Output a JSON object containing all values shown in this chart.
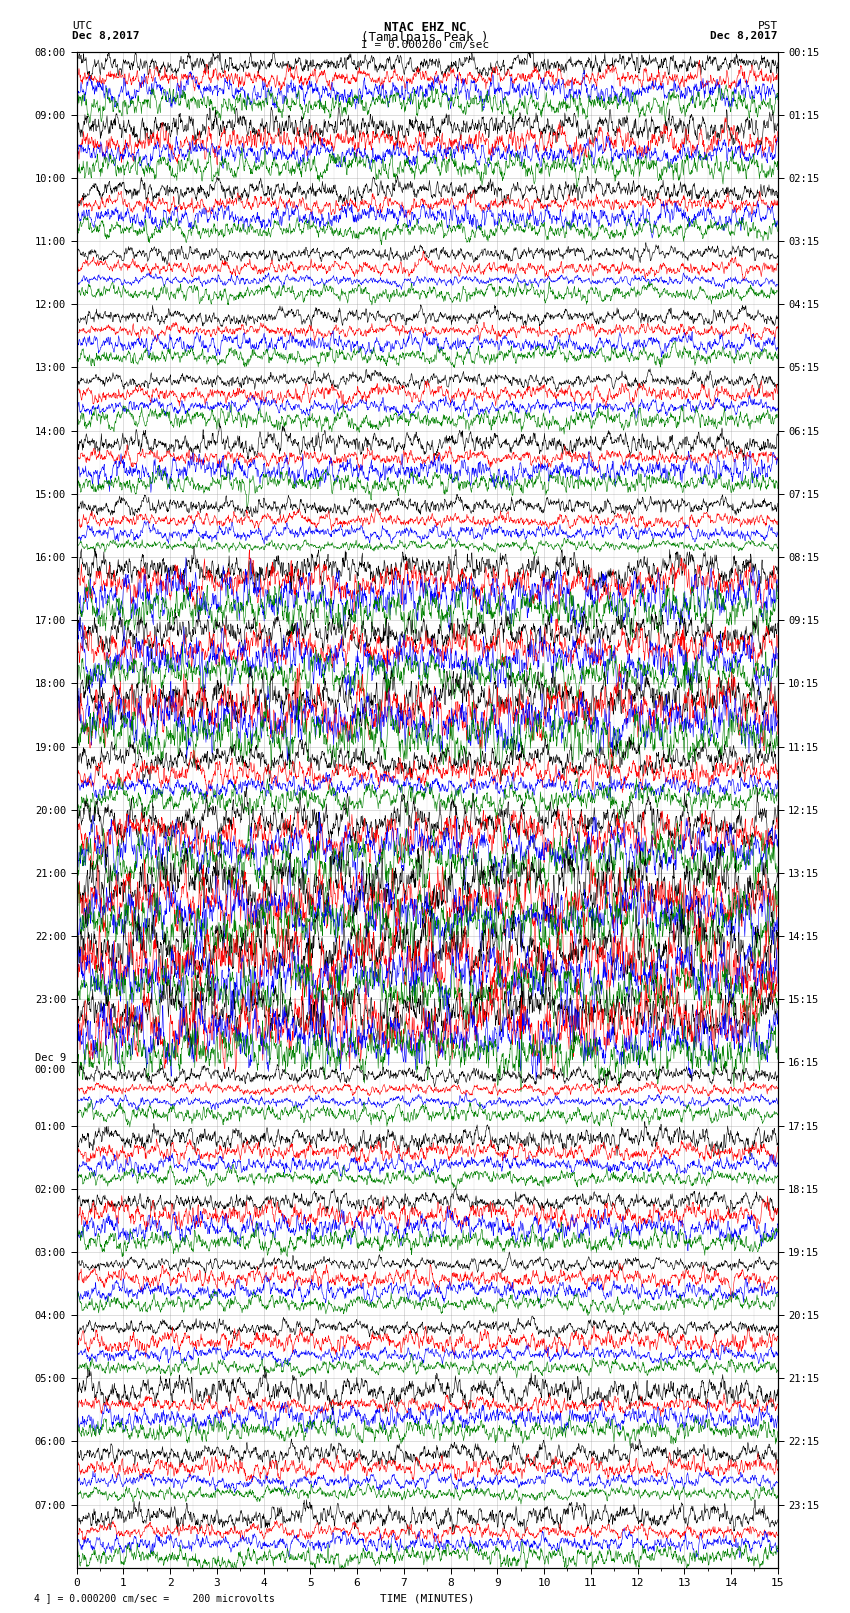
{
  "title_line1": "NTAC EHZ NC",
  "title_line2": "(Tamalpais Peak )",
  "title_line3": "I = 0.000200 cm/sec",
  "left_label_top": "UTC",
  "left_label_date": "Dec 8,2017",
  "right_label_top": "PST",
  "right_label_date": "Dec 8,2017",
  "xlabel": "TIME (MINUTES)",
  "footer": "4 ] = 0.000200 cm/sec =    200 microvolts",
  "utc_times": [
    "08:00",
    "09:00",
    "10:00",
    "11:00",
    "12:00",
    "13:00",
    "14:00",
    "15:00",
    "16:00",
    "17:00",
    "18:00",
    "19:00",
    "20:00",
    "21:00",
    "22:00",
    "23:00",
    "Dec 9\n00:00",
    "01:00",
    "02:00",
    "03:00",
    "04:00",
    "05:00",
    "06:00",
    "07:00"
  ],
  "pst_times": [
    "00:15",
    "01:15",
    "02:15",
    "03:15",
    "04:15",
    "05:15",
    "06:15",
    "07:15",
    "08:15",
    "09:15",
    "10:15",
    "11:15",
    "12:15",
    "13:15",
    "14:15",
    "15:15",
    "16:15",
    "17:15",
    "18:15",
    "19:15",
    "20:15",
    "21:15",
    "22:15",
    "23:15"
  ],
  "trace_colors": [
    "black",
    "red",
    "blue",
    "green"
  ],
  "n_hour_rows": 24,
  "n_traces_per_hour": 4,
  "x_min": 0,
  "x_max": 15,
  "background_color": "white",
  "grid_color": "#999999",
  "noise_base": 0.04,
  "seed": 12345,
  "active_hours": [
    8,
    9,
    10,
    11,
    12,
    13,
    14,
    15
  ],
  "very_active_hours": [
    12,
    13,
    14
  ],
  "n_pts": 2000
}
